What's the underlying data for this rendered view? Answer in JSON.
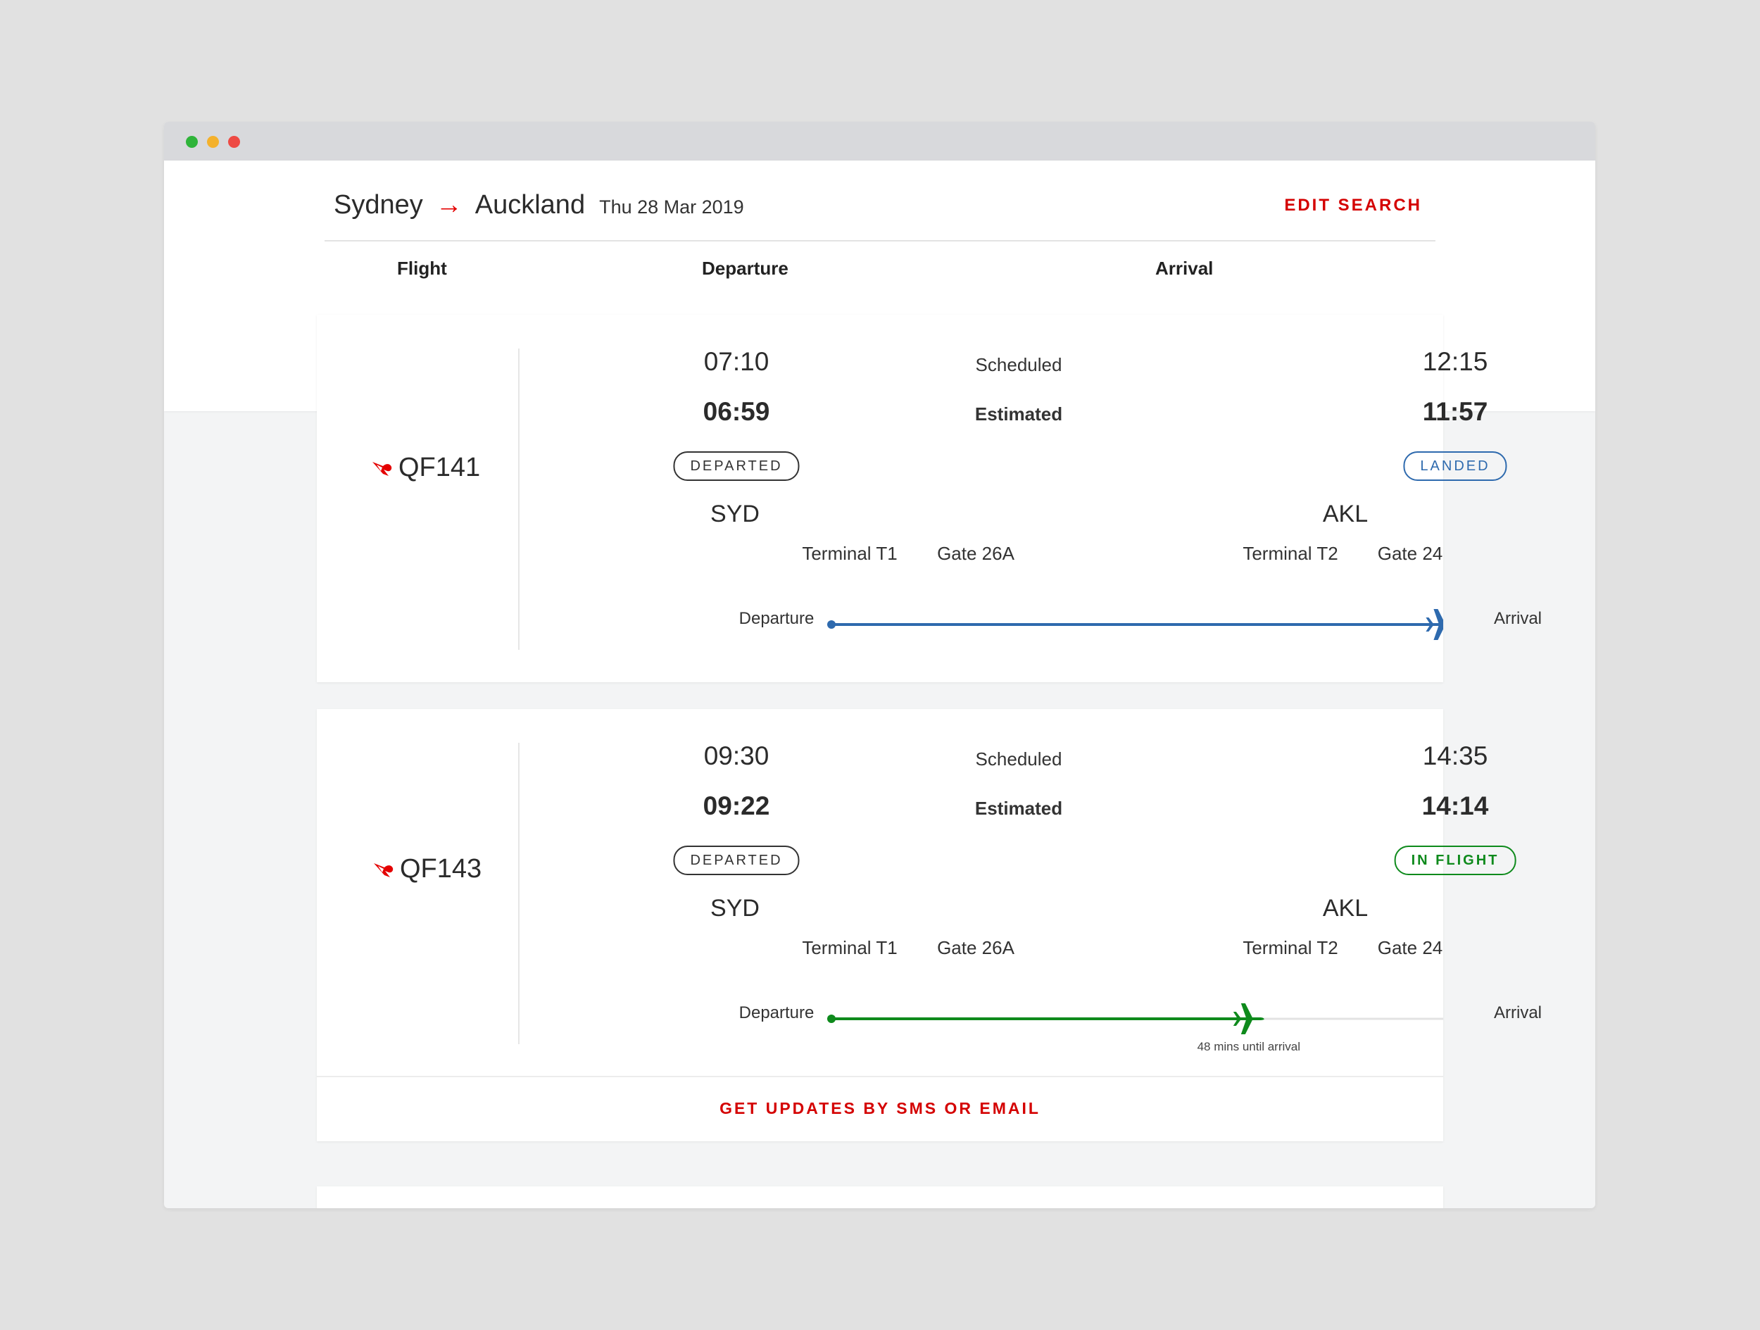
{
  "search": {
    "origin": "Sydney",
    "destination": "Auckland",
    "arrow": "→",
    "date": "Thu 28 Mar 2019",
    "edit_label": "EDIT SEARCH"
  },
  "columns": {
    "flight": "Flight",
    "departure": "Departure",
    "arrival": "Arrival"
  },
  "colors": {
    "brand_red": "#d40000",
    "landed_blue": "#2e6aae",
    "inflight_green": "#0e8a1c"
  },
  "flights": [
    {
      "number": "QF141",
      "logo_icon": "qantas-kangaroo-icon",
      "scheduled_label": "Scheduled",
      "estimated_label": "Estimated",
      "departure": {
        "scheduled": "07:10",
        "estimated": "06:59",
        "status": "DEPARTED",
        "airport": "SYD",
        "terminal": "Terminal T1",
        "gate": "Gate 26A"
      },
      "arrival": {
        "scheduled": "12:15",
        "estimated": "11:57",
        "status": "LANDED",
        "airport": "AKL",
        "terminal": "Terminal T2",
        "gate": "Gate 24"
      },
      "progress": {
        "start_label": "Departure",
        "end_label": "Arrival",
        "fraction": 0.95,
        "color": "#2e6aae",
        "note": ""
      }
    },
    {
      "number": "QF143",
      "logo_icon": "qantas-kangaroo-icon",
      "scheduled_label": "Scheduled",
      "estimated_label": "Estimated",
      "departure": {
        "scheduled": "09:30",
        "estimated": "09:22",
        "status": "DEPARTED",
        "airport": "SYD",
        "terminal": "Terminal T1",
        "gate": "Gate 26A"
      },
      "arrival": {
        "scheduled": "14:35",
        "estimated": "14:14",
        "status": "IN FLIGHT",
        "airport": "AKL",
        "terminal": "Terminal T2",
        "gate": "Gate 24"
      },
      "progress": {
        "start_label": "Departure",
        "end_label": "Arrival",
        "fraction": 0.65,
        "color": "#0e8a1c",
        "note": "48 mins until arrival"
      },
      "updates_label": "GET UPDATES BY SMS OR EMAIL"
    }
  ]
}
